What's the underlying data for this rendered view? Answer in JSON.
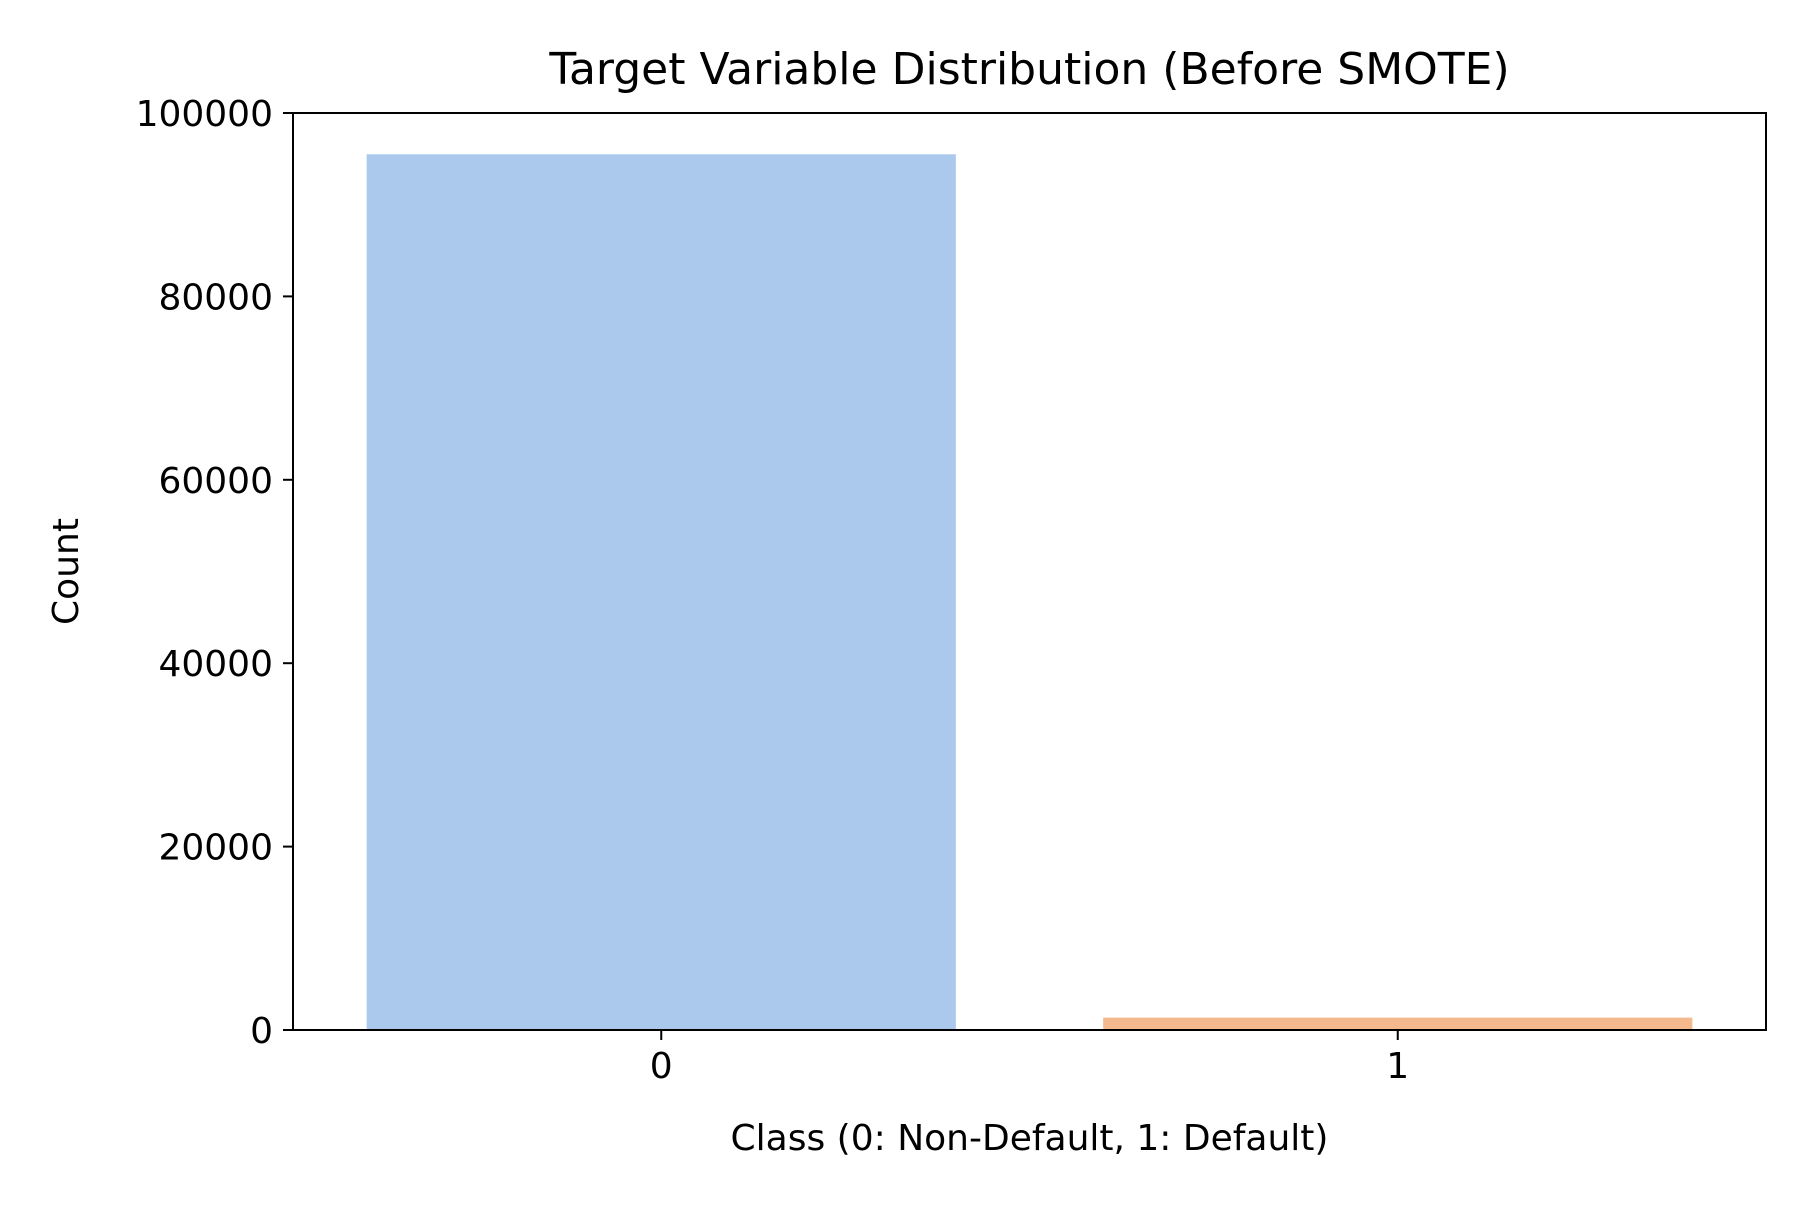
{
  "chart_data": {
    "type": "bar",
    "title": "Target Variable Distribution (Before SMOTE)",
    "xlabel": "Class (0: Non-Default, 1: Default)",
    "ylabel": "Count",
    "categories": [
      "0",
      "1"
    ],
    "values": [
      95500,
      1350
    ],
    "colors": [
      "#abc9ec",
      "#f4b98d"
    ],
    "ylim": [
      0,
      100000
    ],
    "yticks": [
      0,
      20000,
      40000,
      60000,
      80000,
      100000
    ],
    "ytick_labels": [
      "0",
      "20000",
      "40000",
      "60000",
      "80000",
      "100000"
    ],
    "grid": false,
    "legend": "none"
  }
}
